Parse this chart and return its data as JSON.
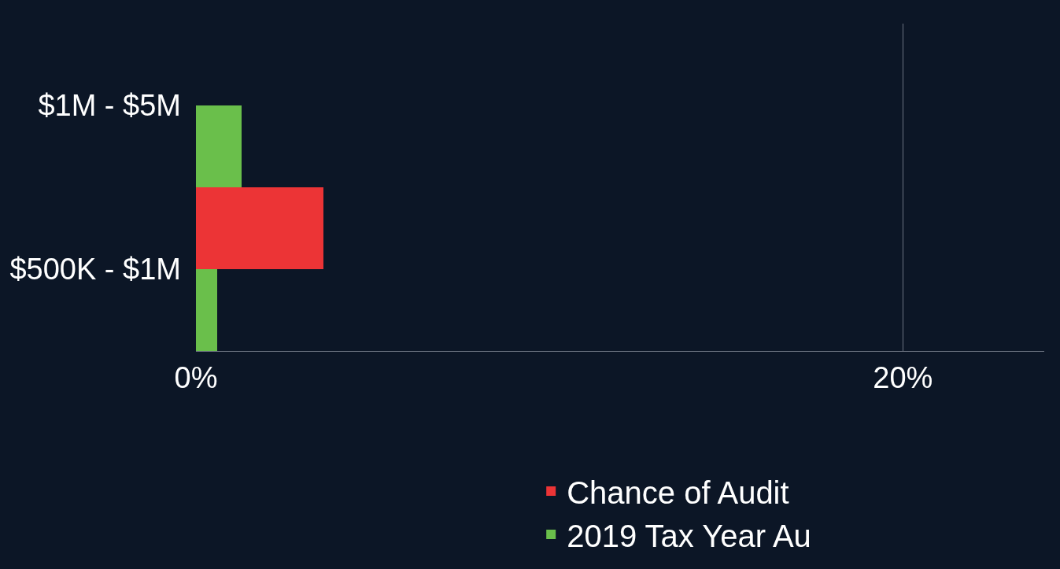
{
  "chart_data": {
    "type": "bar",
    "orientation": "horizontal",
    "categories": [
      "$1M - $5M",
      "$500K - $1M"
    ],
    "series": [
      {
        "name": "Chance of Audit",
        "color": "#ec3436",
        "values": [
          null,
          3.6
        ]
      },
      {
        "name": "2019 Tax Year Au",
        "color": "#6abf4b",
        "values": [
          1.3,
          0.6
        ]
      }
    ],
    "xlim": [
      0,
      24
    ],
    "xticks": [
      {
        "value": 0,
        "label": "0%"
      },
      {
        "value": 20,
        "label": "20%"
      }
    ],
    "grid": "x",
    "legend": "bottom"
  }
}
